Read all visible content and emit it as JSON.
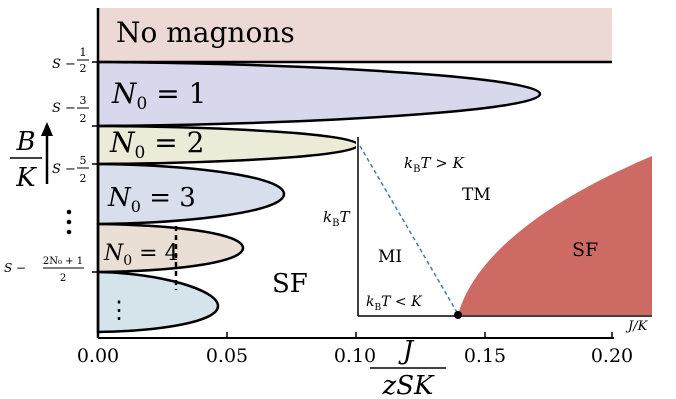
{
  "main": {
    "top_region_label": "No magnons",
    "lobes": [
      {
        "label": "N",
        "sub": "0",
        "eq": " = 1",
        "color": "#d8d8ec"
      },
      {
        "label": "N",
        "sub": "0",
        "eq": " = 2",
        "color": "#ecebd8"
      },
      {
        "label": "N",
        "sub": "0",
        "eq": " = 3",
        "color": "#d8deec"
      },
      {
        "label": "N",
        "sub": "0",
        "eq": " = 4",
        "color": "#eadfd4"
      },
      {
        "label": "⋮",
        "sub": "",
        "eq": "",
        "color": "#d5e4ea"
      }
    ],
    "sf_label": "SF",
    "y_left_ticks": [
      {
        "pre": "S − ",
        "num": "1",
        "den": "2"
      },
      {
        "pre": "S − ",
        "num": "3",
        "den": "2"
      },
      {
        "pre": "S − ",
        "num": "5",
        "den": "2"
      },
      {
        "pre": "S − ",
        "num": "2N₀ + 1",
        "den": "2"
      }
    ],
    "y_axis": {
      "num": "B",
      "den": "K"
    },
    "x_ticks": [
      "0.00",
      "0.05",
      "0.10",
      "0.15",
      "0.20"
    ],
    "x_axis": {
      "num": "J",
      "den": "zSK"
    }
  },
  "inset": {
    "y_label": "k",
    "y_label_sub": "B",
    "y_label_tail": "T",
    "x_label": "J/K",
    "mi_label": "MI",
    "tm_label": "TM",
    "sf_label": "SF",
    "upper_text": {
      "k": "k",
      "sub": "B",
      "rest": "T > K"
    },
    "lower_text": {
      "k": "k",
      "sub": "B",
      "rest": "T < K"
    },
    "sf_color": "#cd6a63",
    "dashed_color": "#4a7ab5"
  },
  "colors": {
    "top_region": "#ecd9d6"
  }
}
